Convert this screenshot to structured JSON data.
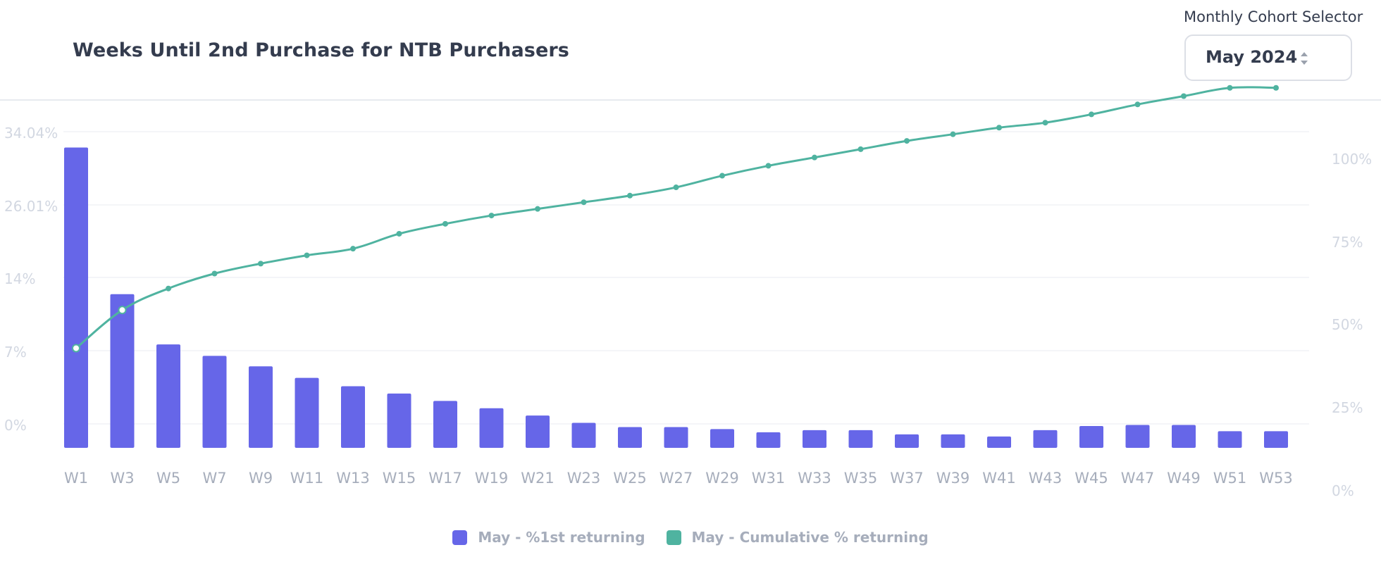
{
  "header": {
    "title": "Weeks Until 2nd Purchase for NTB Purchasers",
    "selector_label": "Monthly Cohort Selector",
    "selector_value": "May 2024"
  },
  "colors": {
    "bar": "#6666e8",
    "line": "#4fb3a0",
    "grid": "#f0f2f5",
    "tick": "#d2d7e1",
    "axis_text": "#a6adbb"
  },
  "legend": {
    "bar_label": "May - %1st returning",
    "line_label": "May - Cumulative % returning"
  },
  "chart_data": {
    "type": "bar+line",
    "categories": [
      "W1",
      "W3",
      "W5",
      "W7",
      "W9",
      "W11",
      "W13",
      "W15",
      "W17",
      "W19",
      "W21",
      "W23",
      "W25",
      "W27",
      "W29",
      "W31",
      "W33",
      "W35",
      "W37",
      "W39",
      "W41",
      "W43",
      "W45",
      "W47",
      "W49",
      "W51",
      "W53"
    ],
    "left_axis": {
      "ticks": [
        "34.04%",
        "26.01%",
        "14%",
        "7%",
        "0%"
      ]
    },
    "right_axis": {
      "ticks": [
        "100%",
        "75%",
        "50%",
        "25%",
        "0%"
      ],
      "ylim": [
        0,
        110
      ]
    },
    "series": [
      {
        "name": "May - %1st returning",
        "type": "bar",
        "axis": "left",
        "values": [
          32.3,
          12.4,
          7.6,
          6.5,
          5.5,
          4.4,
          3.6,
          2.9,
          2.2,
          1.5,
          0.8,
          0.1,
          -0.3,
          -0.3,
          -0.5,
          -0.8,
          -0.6,
          -0.6,
          -1.0,
          -1.0,
          -1.2,
          -0.6,
          -0.2,
          -0.1,
          -0.1,
          -0.7,
          -0.7
        ]
      },
      {
        "name": "May - Cumulative % returning",
        "type": "line",
        "axis": "right",
        "values": [
          43,
          54.5,
          61,
          65.5,
          68.5,
          71,
          73,
          77.5,
          80.5,
          83,
          85,
          87,
          89,
          91.5,
          95,
          98,
          100.5,
          103,
          105.5,
          107.5,
          109.5,
          111,
          113.5,
          116.5,
          119,
          121.5,
          121.5
        ]
      }
    ]
  }
}
